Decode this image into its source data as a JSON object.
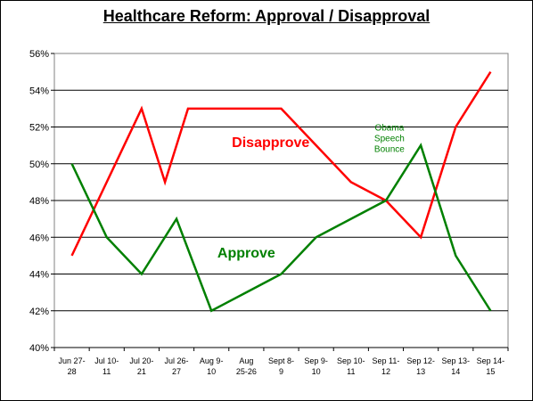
{
  "chart_data": {
    "type": "line",
    "title": "Healthcare Reform: Approval / Disapproval",
    "xlabel": "",
    "ylabel": "",
    "ylim": [
      40,
      56
    ],
    "y_ticks": [
      "40%",
      "42%",
      "44%",
      "46%",
      "48%",
      "50%",
      "52%",
      "54%",
      "56%"
    ],
    "categories": [
      [
        "Jun 27-",
        "28"
      ],
      [
        "Jul 10-",
        "11"
      ],
      [
        "Jul 20-",
        "21"
      ],
      [
        "Jul 26-",
        "27"
      ],
      [
        "Aug 9-",
        "10"
      ],
      [
        "Aug",
        "25-26"
      ],
      [
        "Sept 8-",
        "9"
      ],
      [
        "Sep 9-",
        "10"
      ],
      [
        "Sep 10-",
        "11"
      ],
      [
        "Sep 11-",
        "12"
      ],
      [
        "Sep 12-",
        "13"
      ],
      [
        "Sep 13-",
        "14"
      ],
      [
        "Sep 14-",
        "15"
      ]
    ],
    "x_index": [
      0,
      1,
      2,
      3,
      4,
      5,
      6,
      7,
      8,
      9,
      10,
      11,
      12
    ],
    "series": [
      {
        "name": "Disapprove",
        "color": "#ff0000",
        "x": [
          0,
          1,
          2,
          2.67,
          3.33,
          5.33,
          6,
          7,
          8,
          9,
          10,
          11,
          12
        ],
        "values": [
          45,
          49,
          53,
          49,
          53,
          53,
          53,
          51,
          49,
          48,
          46,
          52,
          55
        ]
      },
      {
        "name": "Approve",
        "color": "#008000",
        "x": [
          0,
          1,
          2,
          3,
          4,
          5,
          6,
          7,
          8,
          9,
          10,
          11,
          12
        ],
        "values": [
          50,
          46,
          44,
          47,
          42,
          43,
          44,
          46,
          47,
          48,
          51,
          45,
          42
        ]
      }
    ],
    "annotations": [
      {
        "lines": [
          "Obama",
          "Speech",
          "Bounce"
        ],
        "color": "#008000"
      }
    ],
    "grid": true,
    "legend": "none"
  }
}
